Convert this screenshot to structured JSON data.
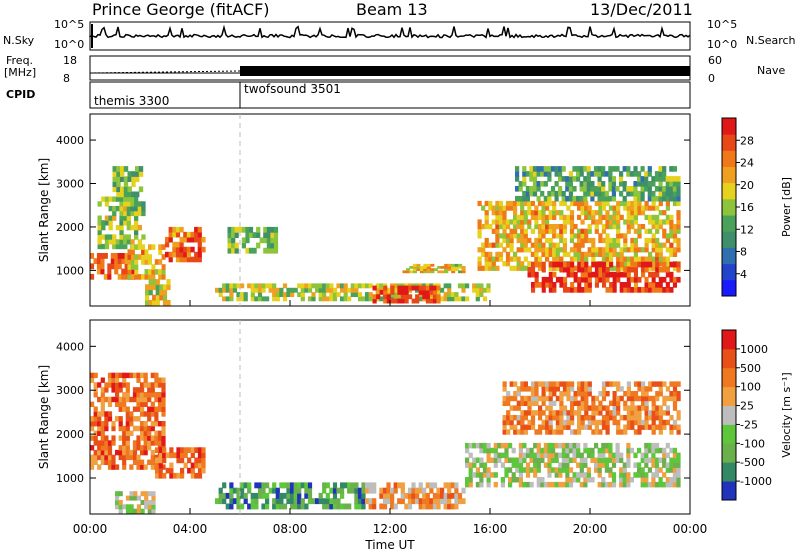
{
  "header": {
    "station": "Prince George (fitACF)",
    "beam": "Beam 13",
    "date": "13/Dec/2011"
  },
  "aux_panels": {
    "nsky_label": "N.Sky",
    "nsearch_label": "N.Search",
    "freq_label_1": "Freq.",
    "freq_label_2": "[MHz]",
    "nave_label": "Nave",
    "cpid_label": "CPID",
    "left_ticks_top": [
      "10^5",
      "10^0"
    ],
    "right_ticks_top": [
      "10^5",
      "10^0"
    ],
    "left_ticks_freq": [
      "18",
      "8"
    ],
    "right_ticks_nave": [
      "60",
      "0"
    ],
    "cpid_segments": [
      {
        "label": "themis 3300",
        "start_hour": 0
      },
      {
        "label": "twofsound 3501",
        "start_hour": 6
      }
    ]
  },
  "chart_data": [
    {
      "type": "heatmap",
      "title": "",
      "xlabel": "Time UT",
      "ylabel": "Slant Range [km]",
      "xlim": [
        0,
        24
      ],
      "ylim": [
        180,
        4600
      ],
      "x_ticks": [
        "00:00",
        "04:00",
        "08:00",
        "12:00",
        "16:00",
        "20:00",
        "00:00"
      ],
      "y_ticks": [
        "1000",
        "2000",
        "3000",
        "4000"
      ],
      "colorbar": {
        "label": "Power [dB]",
        "ticks": [
          "4",
          "8",
          "12",
          "16",
          "20",
          "24",
          "28"
        ],
        "colors": [
          "#1a1aff",
          "#2244cc",
          "#2f6fb0",
          "#3f8f6a",
          "#4aa25a",
          "#8cc43c",
          "#e6d21e",
          "#f0a020",
          "#f07818",
          "#e84818",
          "#e01818"
        ]
      },
      "regions": [
        {
          "t0": 0.0,
          "t1": 1.8,
          "r0": 800,
          "r1": 1400,
          "level": 0.85
        },
        {
          "t0": 0.3,
          "t1": 2.2,
          "r0": 1500,
          "r1": 2700,
          "level": 0.5
        },
        {
          "t0": 0.9,
          "t1": 2.1,
          "r0": 2700,
          "r1": 3400,
          "level": 0.45
        },
        {
          "t0": 1.5,
          "t1": 3.0,
          "r0": 800,
          "r1": 1600,
          "level": 0.65
        },
        {
          "t0": 2.2,
          "t1": 3.2,
          "r0": 200,
          "r1": 800,
          "level": 0.6
        },
        {
          "t0": 3.0,
          "t1": 4.6,
          "r0": 1200,
          "r1": 2000,
          "level": 0.8
        },
        {
          "t0": 5.5,
          "t1": 7.5,
          "r0": 1400,
          "r1": 2000,
          "level": 0.45
        },
        {
          "t0": 5.0,
          "t1": 16.0,
          "r0": 300,
          "r1": 700,
          "level": 0.55
        },
        {
          "t0": 11.3,
          "t1": 14.0,
          "r0": 250,
          "r1": 650,
          "level": 0.95
        },
        {
          "t0": 12.5,
          "t1": 15.0,
          "r0": 950,
          "r1": 1150,
          "level": 0.6
        },
        {
          "t0": 15.5,
          "t1": 23.6,
          "r0": 1000,
          "r1": 2600,
          "level": 0.65
        },
        {
          "t0": 17.5,
          "t1": 23.6,
          "r0": 500,
          "r1": 1200,
          "level": 0.9
        },
        {
          "t0": 17.0,
          "t1": 23.6,
          "r0": 2600,
          "r1": 3400,
          "level": 0.4
        }
      ]
    },
    {
      "type": "heatmap",
      "title": "",
      "xlabel": "Time UT",
      "ylabel": "Slant Range [km]",
      "xlim": [
        0,
        24
      ],
      "ylim": [
        180,
        4600
      ],
      "x_ticks": [
        "00:00",
        "04:00",
        "08:00",
        "12:00",
        "16:00",
        "20:00",
        "00:00"
      ],
      "y_ticks": [
        "1000",
        "2000",
        "3000",
        "4000"
      ],
      "colorbar": {
        "label": "Velocity [m s⁻¹]",
        "ticks": [
          "1000",
          "500",
          "100",
          "25",
          "-25",
          "-100",
          "-500",
          "-1000"
        ],
        "colors": [
          "#2233bb",
          "#338866",
          "#6ab04c",
          "#5ec63a",
          "#bdbdbd",
          "#f0a040",
          "#f07820",
          "#e85018",
          "#e01818"
        ]
      },
      "regions": [
        {
          "t0": 0.0,
          "t1": 3.0,
          "r0": 1200,
          "r1": 3400,
          "level": 0.75
        },
        {
          "t0": 2.6,
          "t1": 4.6,
          "r0": 1000,
          "r1": 1700,
          "level": 0.78
        },
        {
          "t0": 1.0,
          "t1": 2.6,
          "r0": 200,
          "r1": 700,
          "level": 0.45
        },
        {
          "t0": 5.0,
          "t1": 11.0,
          "r0": 300,
          "r1": 900,
          "level": 0.25
        },
        {
          "t0": 11.0,
          "t1": 15.0,
          "r0": 300,
          "r1": 900,
          "level": 0.65
        },
        {
          "t0": 15.0,
          "t1": 23.6,
          "r0": 800,
          "r1": 1800,
          "level": 0.45
        },
        {
          "t0": 16.5,
          "t1": 23.6,
          "r0": 2000,
          "r1": 3200,
          "level": 0.7
        }
      ]
    }
  ]
}
